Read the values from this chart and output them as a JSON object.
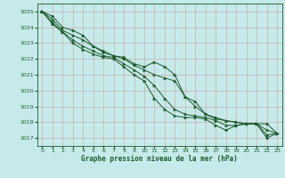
{
  "bg_color": "#c6eaea",
  "grid_color": "#b0c8c8",
  "line_color": "#1a5c2a",
  "marker_color": "#1a5c2a",
  "xlabel": "Graphe pression niveau de la mer (hPa)",
  "xlabel_color": "#1a5c2a",
  "tick_color": "#1a5c2a",
  "ylim": [
    1016.5,
    1025.5
  ],
  "xlim": [
    -0.5,
    23.5
  ],
  "yticks": [
    1017,
    1018,
    1019,
    1020,
    1021,
    1022,
    1023,
    1024,
    1025
  ],
  "xticks": [
    0,
    1,
    2,
    3,
    4,
    5,
    6,
    7,
    8,
    9,
    10,
    11,
    12,
    13,
    14,
    15,
    16,
    17,
    18,
    19,
    20,
    21,
    22,
    23
  ],
  "series": [
    [
      1025.0,
      1024.7,
      1024.0,
      1023.8,
      1023.5,
      1022.8,
      1022.5,
      1022.2,
      1022.1,
      1021.7,
      1021.5,
      1021.8,
      1021.5,
      1021.0,
      1019.6,
      1019.3,
      1018.5,
      1018.3,
      1018.1,
      1018.0,
      1017.9,
      1017.9,
      1017.9,
      1017.3
    ],
    [
      1025.0,
      1024.5,
      1023.8,
      1023.5,
      1023.2,
      1022.8,
      1022.4,
      1022.2,
      1022.0,
      1021.6,
      1021.3,
      1021.0,
      1020.8,
      1020.6,
      1019.6,
      1019.0,
      1018.5,
      1018.2,
      1018.1,
      1018.0,
      1017.9,
      1017.9,
      1017.5,
      1017.3
    ],
    [
      1025.0,
      1024.3,
      1023.7,
      1023.2,
      1022.8,
      1022.5,
      1022.2,
      1022.1,
      1021.7,
      1021.3,
      1020.9,
      1020.3,
      1019.5,
      1018.8,
      1018.5,
      1018.4,
      1018.3,
      1018.1,
      1017.8,
      1017.8,
      1017.9,
      1017.9,
      1017.2,
      1017.3
    ],
    [
      1025.0,
      1024.2,
      1023.7,
      1023.0,
      1022.6,
      1022.3,
      1022.1,
      1022.0,
      1021.5,
      1021.0,
      1020.6,
      1019.5,
      1018.8,
      1018.4,
      1018.3,
      1018.3,
      1018.2,
      1017.8,
      1017.5,
      1017.8,
      1017.9,
      1017.9,
      1017.0,
      1017.3
    ]
  ]
}
